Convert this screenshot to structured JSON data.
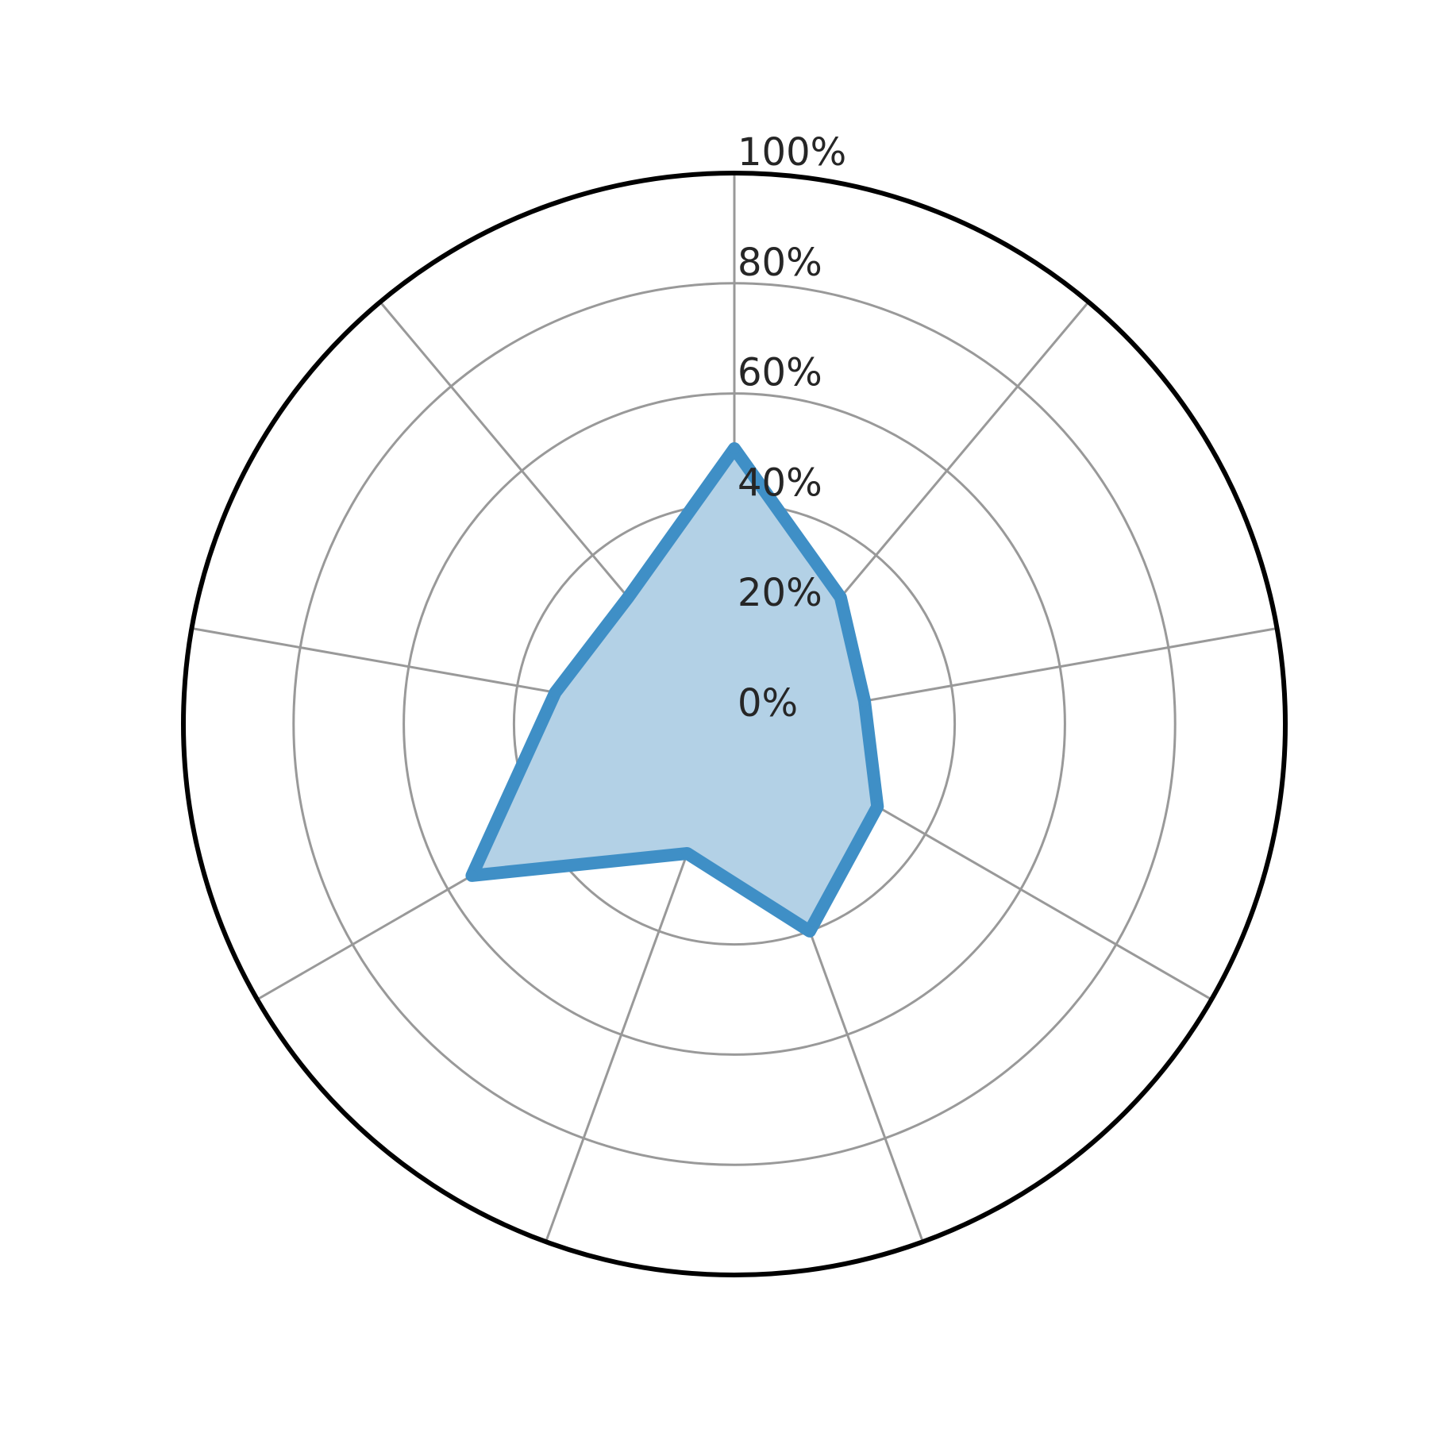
{
  "chart_data": {
    "type": "radar",
    "title": "",
    "categories": [
      "",
      "",
      "",
      "",
      "",
      "",
      "",
      "",
      ""
    ],
    "series": [
      {
        "values": [
          50,
          30,
          24,
          30,
          40,
          25,
          55,
          33,
          30
        ]
      }
    ],
    "rlim": [
      0,
      100
    ],
    "r_ticks": [
      0,
      20,
      40,
      60,
      80,
      100
    ],
    "r_tick_labels": [
      "0%",
      "20%",
      "40%",
      "60%",
      "80%",
      "100%"
    ],
    "grid": true,
    "legend": "none",
    "colors": {
      "series_line": "#3f8fc6",
      "series_fill": "#b3d1e6",
      "grid": "#999999",
      "frame": "#000000",
      "tick_text": "#262626"
    }
  }
}
